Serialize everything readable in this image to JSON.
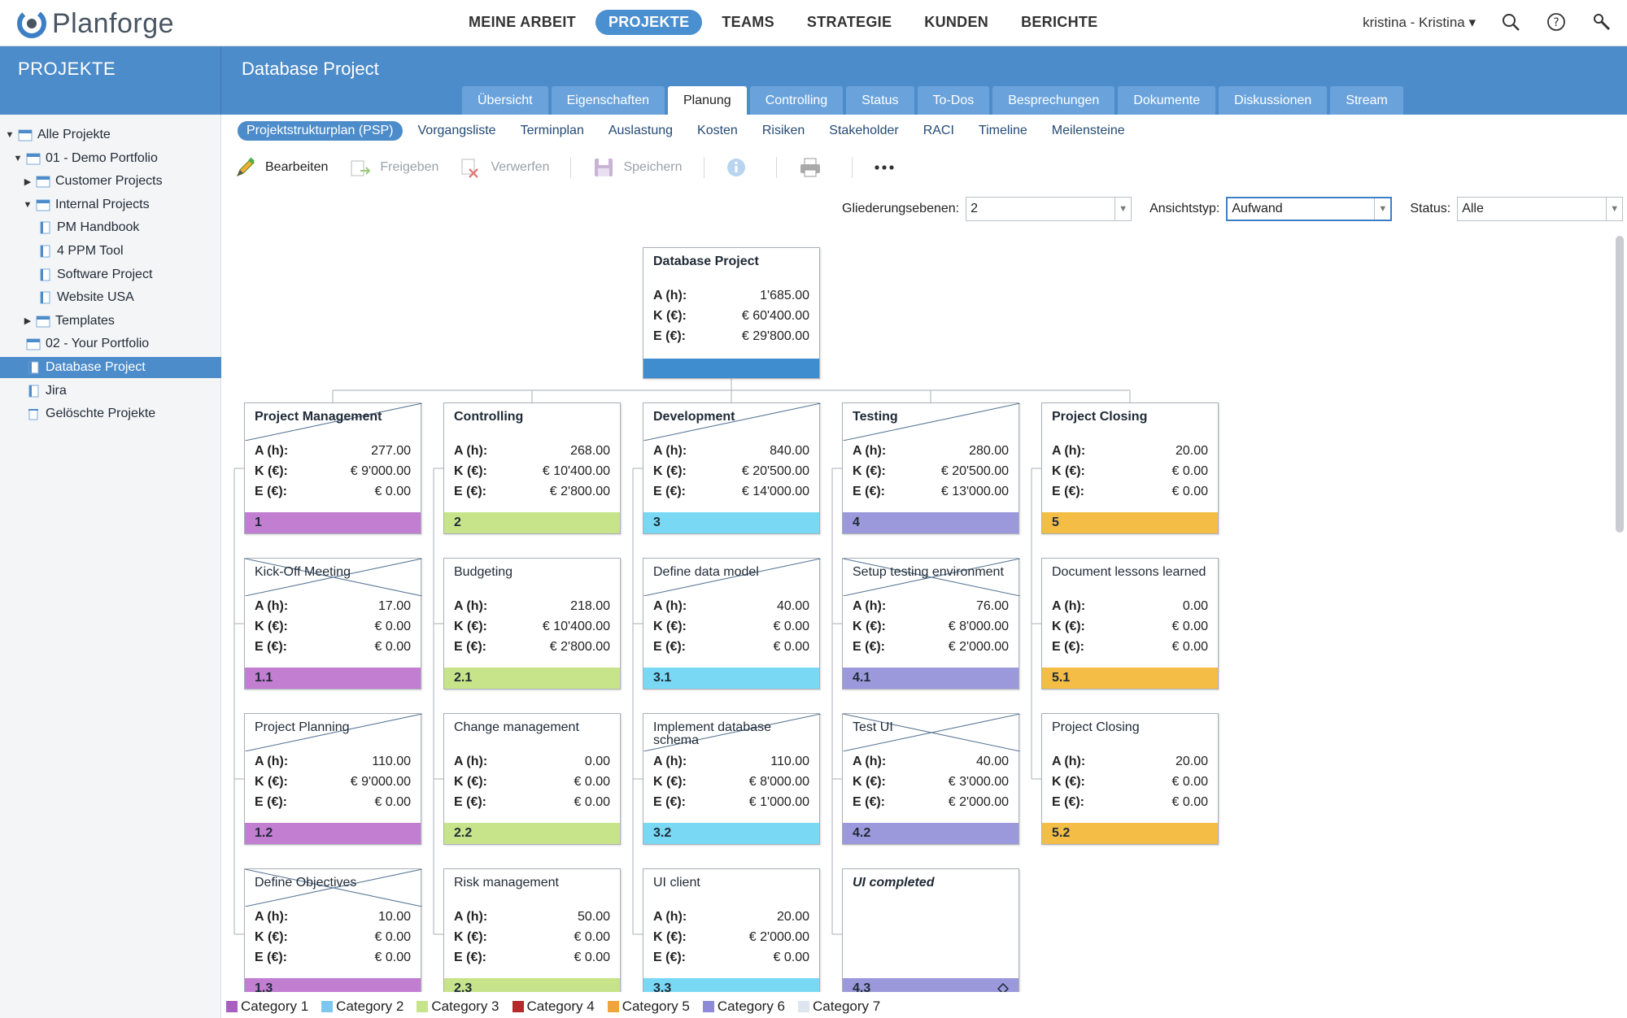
{
  "app": {
    "name": "Planforge"
  },
  "topnav": [
    {
      "label": "MEINE ARBEIT",
      "active": false
    },
    {
      "label": "PROJEKTE",
      "active": true
    },
    {
      "label": "TEAMS",
      "active": false
    },
    {
      "label": "STRATEGIE",
      "active": false
    },
    {
      "label": "KUNDEN",
      "active": false
    },
    {
      "label": "BERICHTE",
      "active": false
    }
  ],
  "user": {
    "label": "kristina - Kristina ▾"
  },
  "icons": {
    "search": "search-icon",
    "help": "help-icon",
    "tools": "wrench-icon"
  },
  "sidebar": {
    "caption": "PROJEKTE",
    "items": [
      {
        "label": "Alle Projekte",
        "level": 0,
        "toggle": "▼",
        "icon": "folder-icon",
        "selected": false
      },
      {
        "label": "01 - Demo Portfolio",
        "level": 1,
        "toggle": "▼",
        "icon": "folder-icon",
        "selected": false
      },
      {
        "label": "Customer Projects",
        "level": 2,
        "toggle": "▶",
        "icon": "folder-icon",
        "selected": false
      },
      {
        "label": "Internal Projects",
        "level": 2,
        "toggle": "▼",
        "icon": "folder-icon",
        "selected": false
      },
      {
        "label": "PM Handbook",
        "level": 3,
        "toggle": "",
        "icon": "project-icon",
        "selected": false
      },
      {
        "label": "4 PPM Tool",
        "level": 3,
        "toggle": "",
        "icon": "project-icon",
        "selected": false
      },
      {
        "label": "Software Project",
        "level": 3,
        "toggle": "",
        "icon": "project-icon",
        "selected": false
      },
      {
        "label": "Website USA",
        "level": 3,
        "toggle": "",
        "icon": "project-icon",
        "selected": false
      },
      {
        "label": "Templates",
        "level": 2,
        "toggle": "▶",
        "icon": "folder-icon",
        "selected": false
      },
      {
        "label": "02 - Your Portfolio",
        "level": 1,
        "toggle": "",
        "icon": "folder-icon",
        "selected": false
      },
      {
        "label": "Database Project",
        "level": 1,
        "toggle": "",
        "icon": "project-icon",
        "selected": true
      },
      {
        "label": "Jira",
        "level": 1,
        "toggle": "",
        "icon": "project-icon",
        "selected": false
      },
      {
        "label": "Gelöschte Projekte",
        "level": 1,
        "toggle": "",
        "icon": "trash-icon",
        "selected": false
      }
    ]
  },
  "project": {
    "title": "Database Project"
  },
  "tabs": [
    {
      "label": "Übersicht",
      "active": false
    },
    {
      "label": "Eigenschaften",
      "active": false
    },
    {
      "label": "Planung",
      "active": true
    },
    {
      "label": "Controlling",
      "active": false
    },
    {
      "label": "Status",
      "active": false
    },
    {
      "label": "To-Dos",
      "active": false
    },
    {
      "label": "Besprechungen",
      "active": false
    },
    {
      "label": "Dokumente",
      "active": false
    },
    {
      "label": "Diskussionen",
      "active": false
    },
    {
      "label": "Stream",
      "active": false
    }
  ],
  "subnav": [
    {
      "label": "Projektstrukturplan (PSP)",
      "active": true
    },
    {
      "label": "Vorgangsliste",
      "active": false
    },
    {
      "label": "Terminplan",
      "active": false
    },
    {
      "label": "Auslastung",
      "active": false
    },
    {
      "label": "Kosten",
      "active": false
    },
    {
      "label": "Risiken",
      "active": false
    },
    {
      "label": "Stakeholder",
      "active": false
    },
    {
      "label": "RACI",
      "active": false
    },
    {
      "label": "Timeline",
      "active": false
    },
    {
      "label": "Meilensteine",
      "active": false
    }
  ],
  "toolbar": {
    "edit": "Bearbeiten",
    "release": "Freigeben",
    "discard": "Verwerfen",
    "save": "Speichern"
  },
  "filters": {
    "levels_label": "Gliederungsebenen:",
    "levels_value": "2",
    "view_label": "Ansichtstyp:",
    "view_value": "Aufwand",
    "status_label": "Status:",
    "status_value": "Alle"
  },
  "labels": {
    "a": "A (h):",
    "k": "K (€):",
    "e": "E (€):"
  },
  "colors": {
    "root": "#3f8dcf",
    "c1": "#c27ed1",
    "c2": "#c8e48a",
    "c3": "#79d9f4",
    "c4": "#9b99db",
    "c5": "#f4bd45"
  },
  "root": {
    "title": "Database Project",
    "a": "1'685.00",
    "k": "€ 60'400.00",
    "e": "€ 29'800.00"
  },
  "columns": [
    {
      "color": "c1",
      "cards": [
        {
          "title": "Project Management",
          "a": "277.00",
          "k": "€ 9'000.00",
          "e": "€ 0.00",
          "id": "1",
          "bold": true,
          "cross": "diag"
        },
        {
          "title": "Kick-Off Meeting",
          "a": "17.00",
          "k": "€ 0.00",
          "e": "€ 0.00",
          "id": "1.1",
          "cross": "x"
        },
        {
          "title": "Project Planning",
          "a": "110.00",
          "k": "€ 9'000.00",
          "e": "€ 0.00",
          "id": "1.2",
          "cross": "diag"
        },
        {
          "title": "Define Objectives",
          "a": "10.00",
          "k": "€ 0.00",
          "e": "€ 0.00",
          "id": "1.3",
          "cross": "x"
        }
      ]
    },
    {
      "color": "c2",
      "cards": [
        {
          "title": "Controlling",
          "a": "268.00",
          "k": "€ 10'400.00",
          "e": "€ 2'800.00",
          "id": "2",
          "bold": true
        },
        {
          "title": "Budgeting",
          "a": "218.00",
          "k": "€ 10'400.00",
          "e": "€ 2'800.00",
          "id": "2.1"
        },
        {
          "title": "Change management",
          "a": "0.00",
          "k": "€ 0.00",
          "e": "€ 0.00",
          "id": "2.2"
        },
        {
          "title": "Risk management",
          "a": "50.00",
          "k": "€ 0.00",
          "e": "€ 0.00",
          "id": "2.3"
        }
      ]
    },
    {
      "color": "c3",
      "cards": [
        {
          "title": "Development",
          "a": "840.00",
          "k": "€ 20'500.00",
          "e": "€ 14'000.00",
          "id": "3",
          "bold": true,
          "cross": "diag"
        },
        {
          "title": "Define data model",
          "a": "40.00",
          "k": "€ 0.00",
          "e": "€ 0.00",
          "id": "3.1",
          "cross": "diag"
        },
        {
          "title": "Implement database schema",
          "a": "110.00",
          "k": "€ 8'000.00",
          "e": "€ 1'000.00",
          "id": "3.2",
          "cross": "diag"
        },
        {
          "title": "UI client",
          "a": "20.00",
          "k": "€ 2'000.00",
          "e": "€ 0.00",
          "id": "3.3"
        }
      ]
    },
    {
      "color": "c4",
      "cards": [
        {
          "title": "Testing",
          "a": "280.00",
          "k": "€ 20'500.00",
          "e": "€ 13'000.00",
          "id": "4",
          "bold": true,
          "cross": "diag"
        },
        {
          "title": "Setup testing environment",
          "a": "76.00",
          "k": "€ 8'000.00",
          "e": "€ 2'000.00",
          "id": "4.1",
          "cross": "x"
        },
        {
          "title": "Test UI",
          "a": "40.00",
          "k": "€ 3'000.00",
          "e": "€ 2'000.00",
          "id": "4.2",
          "cross": "x"
        },
        {
          "title": "UI completed",
          "a": "",
          "k": "",
          "e": "",
          "id": "4.3",
          "milestone": true
        }
      ]
    },
    {
      "color": "c5",
      "cards": [
        {
          "title": "Project Closing",
          "a": "20.00",
          "k": "€ 0.00",
          "e": "€ 0.00",
          "id": "5",
          "bold": true
        },
        {
          "title": "Document lessons learned",
          "a": "0.00",
          "k": "€ 0.00",
          "e": "€ 0.00",
          "id": "5.1"
        },
        {
          "title": "Project Closing",
          "a": "20.00",
          "k": "€ 0.00",
          "e": "€ 0.00",
          "id": "5.2"
        }
      ]
    }
  ],
  "legend": [
    {
      "label": "Category 1",
      "color": "#a95fc2"
    },
    {
      "label": "Category 2",
      "color": "#7cc6ef"
    },
    {
      "label": "Category 3",
      "color": "#c8e48a"
    },
    {
      "label": "Category 4",
      "color": "#b52a2a"
    },
    {
      "label": "Category 5",
      "color": "#f0a53c"
    },
    {
      "label": "Category 6",
      "color": "#8e8ad8"
    },
    {
      "label": "Category 7",
      "color": "#dde6ef"
    }
  ]
}
